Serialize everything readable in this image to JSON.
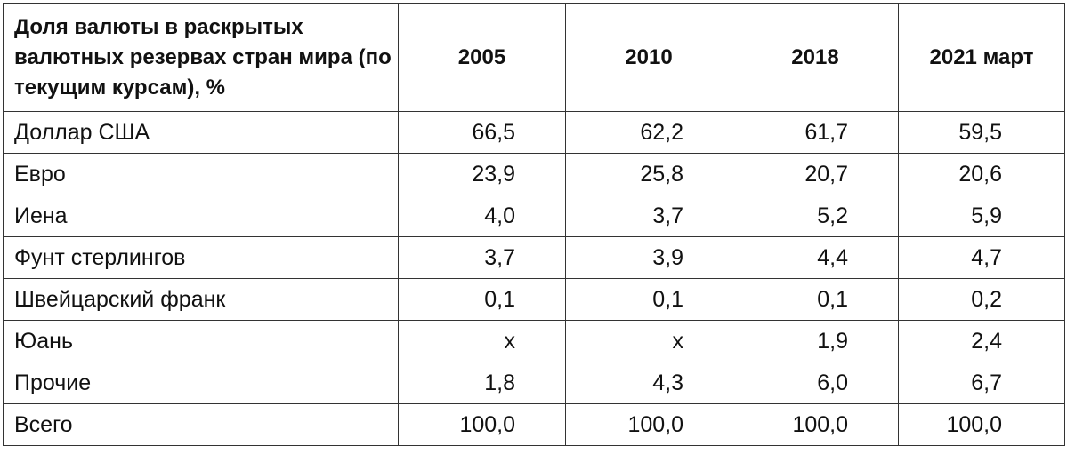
{
  "table": {
    "header": {
      "label": "Доля валюты в раскрытых валютных резервах стран мира (по текущим курсам), %",
      "years": [
        "2005",
        "2010",
        "2018",
        "2021 март"
      ]
    },
    "rows": [
      {
        "name": "Доллар США",
        "values": [
          "66,5",
          "62,2",
          "61,7",
          "59,5"
        ]
      },
      {
        "name": "Евро",
        "values": [
          "23,9",
          "25,8",
          "20,7",
          "20,6"
        ]
      },
      {
        "name": "Иена",
        "values": [
          "4,0",
          "3,7",
          "5,2",
          "5,9"
        ]
      },
      {
        "name": "Фунт стерлингов",
        "values": [
          "3,7",
          "3,9",
          "4,4",
          "4,7"
        ]
      },
      {
        "name": "Швейцарский франк",
        "values": [
          "0,1",
          "0,1",
          "0,1",
          "0,2"
        ]
      },
      {
        "name": "Юань",
        "values": [
          "x",
          "x",
          "1,9",
          "2,4"
        ]
      },
      {
        "name": "Прочие",
        "values": [
          "1,8",
          "4,3",
          "6,0",
          "6,7"
        ]
      },
      {
        "name": "Всего",
        "values": [
          "100,0",
          "100,0",
          "100,0",
          "100,0"
        ]
      }
    ]
  }
}
